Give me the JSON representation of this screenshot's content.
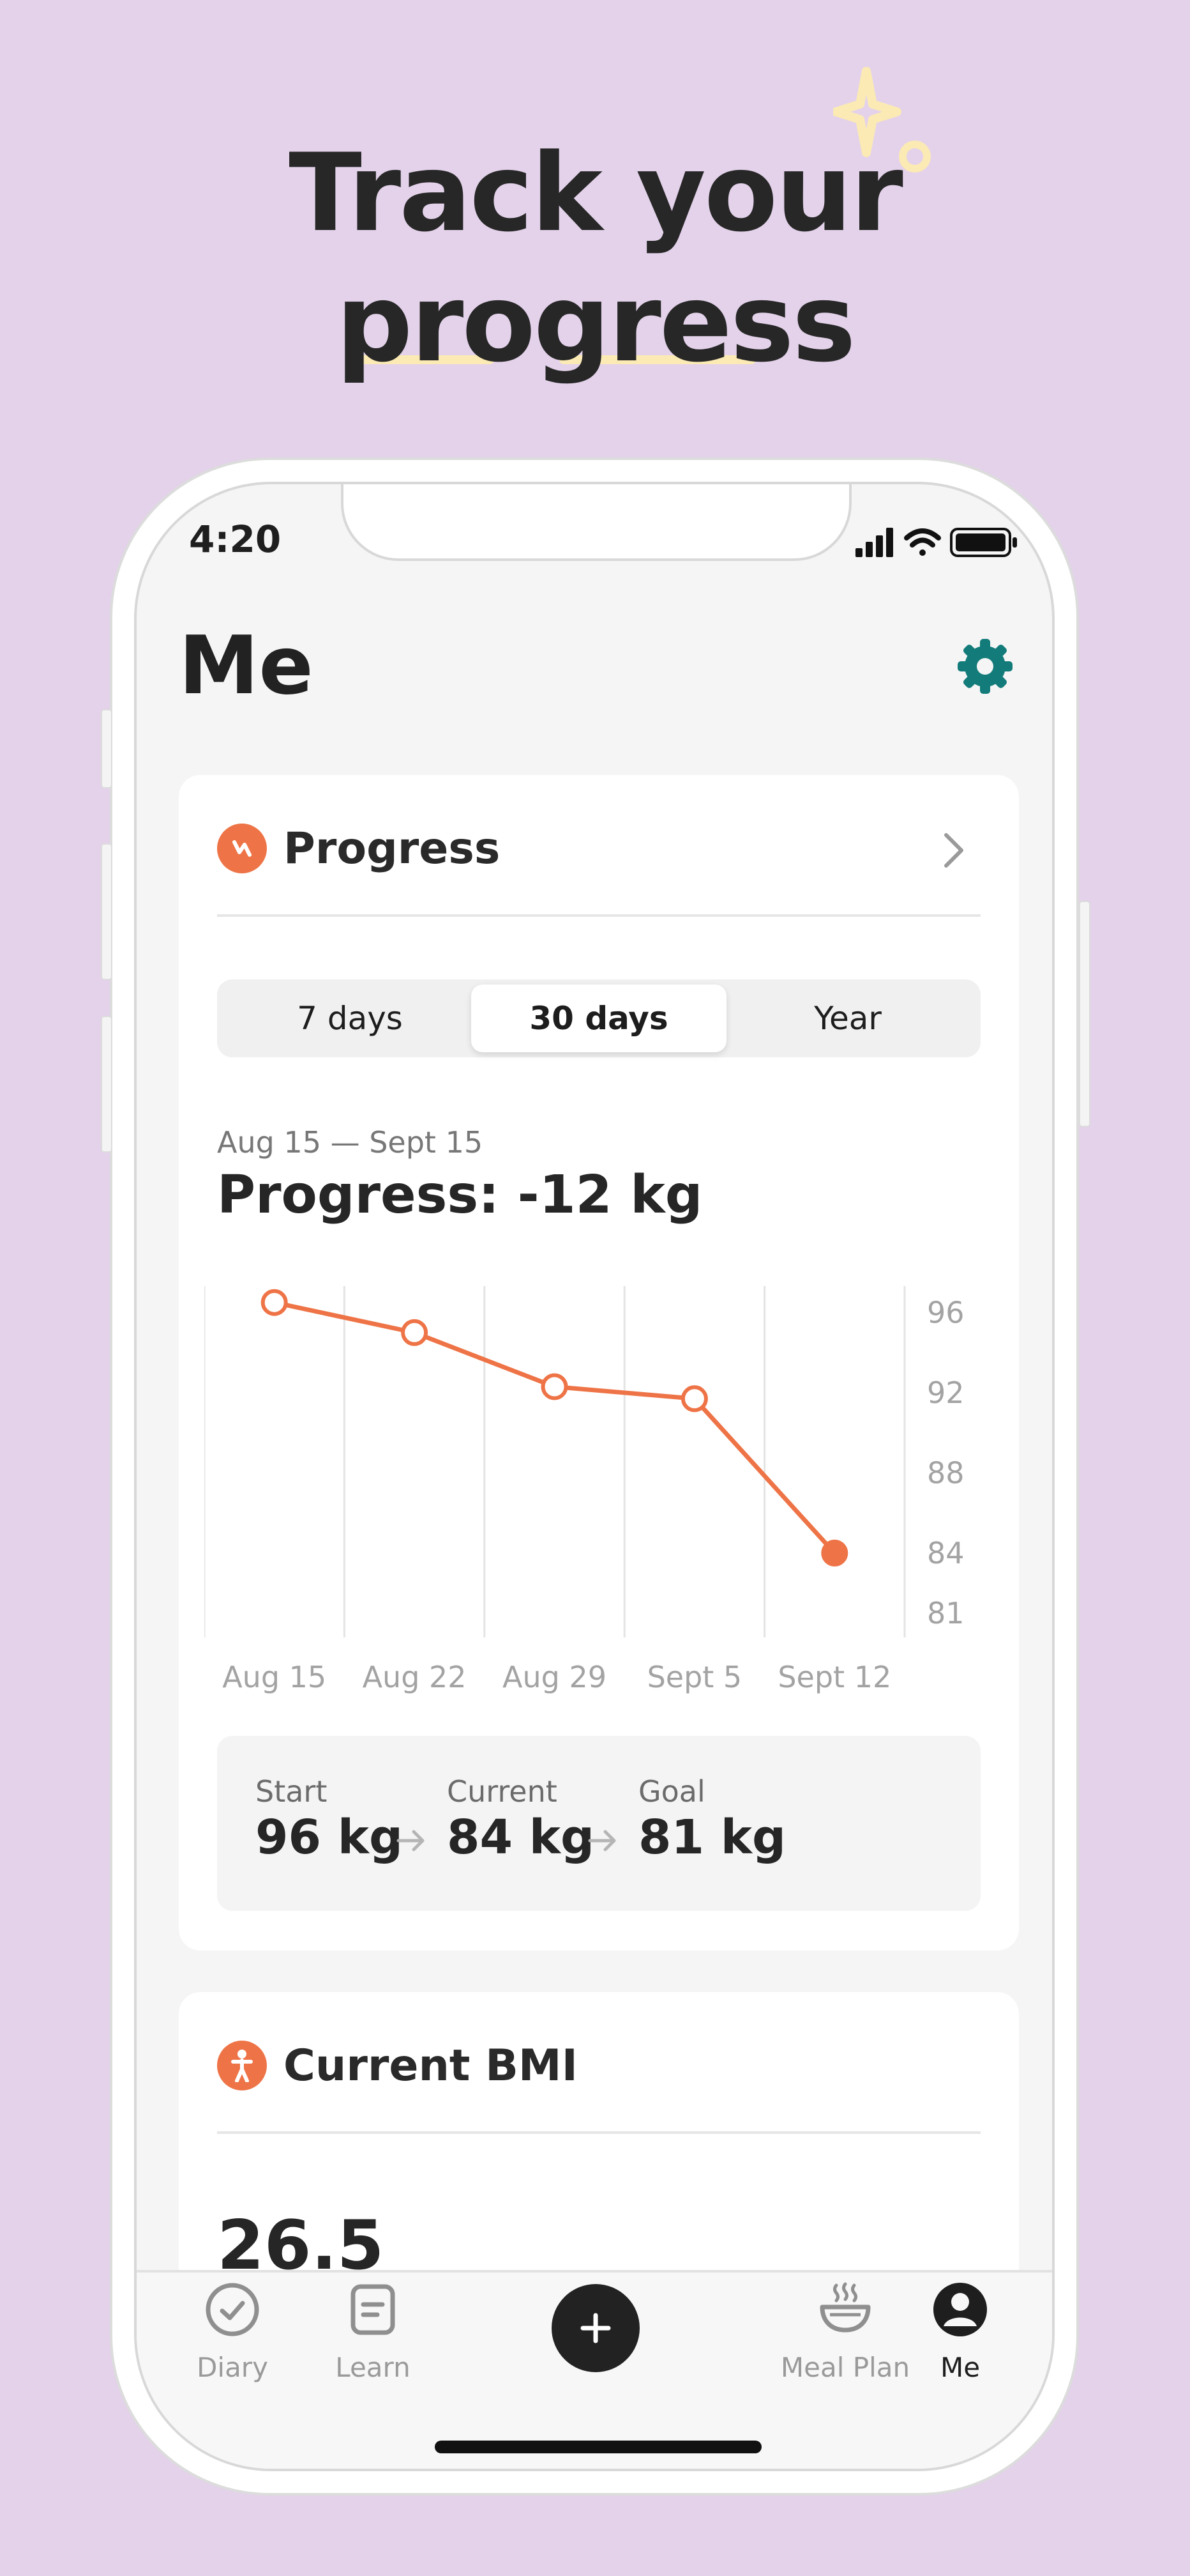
{
  "headline": {
    "line1": "Track your",
    "line2": "progress"
  },
  "status_bar": {
    "time": "4:20"
  },
  "page": {
    "title": "Me"
  },
  "progress_card": {
    "title": "Progress",
    "segments": [
      "7 days",
      "30 days",
      "Year"
    ],
    "selected_segment": "30 days",
    "date_range": "Aug 15 — Sept 15",
    "summary": "Progress: -12 kg",
    "stats": [
      {
        "label": "Start",
        "value": "96 kg"
      },
      {
        "label": "Current",
        "value": "84 kg"
      },
      {
        "label": "Goal",
        "value": "81 kg"
      }
    ]
  },
  "chart_data": {
    "type": "line",
    "categories": [
      "Aug 15",
      "Aug 22",
      "Aug 29",
      "Sept 5",
      "Sept 12"
    ],
    "yticks": [
      96,
      92,
      88,
      84,
      81
    ],
    "points": [
      {
        "x": "Aug 15",
        "y": 96.5
      },
      {
        "x": "Aug 22",
        "y": 95.0
      },
      {
        "x": "Aug 29",
        "y": 92.3
      },
      {
        "x": "Sept 5",
        "y": 91.7
      },
      {
        "x": "Sept 12",
        "y": 84.0
      }
    ],
    "ylim": [
      81,
      97
    ],
    "y_axis_position": "right",
    "grid": "vertical",
    "line_color": "#ee7447"
  },
  "bmi_card": {
    "title": "Current BMI",
    "value": "26.5"
  },
  "tab_bar": {
    "items": [
      {
        "label": "Diary",
        "icon": "diary-check-icon"
      },
      {
        "label": "Learn",
        "icon": "learn-book-icon"
      },
      {
        "label": "",
        "icon": "plus-icon"
      },
      {
        "label": "Meal Plan",
        "icon": "meal-bowl-icon"
      },
      {
        "label": "Me",
        "icon": "profile-icon"
      }
    ],
    "active": "Me"
  },
  "colors": {
    "accent": "#ee7447",
    "background": "#e3d2ea",
    "gear": "#137c7a",
    "highlight": "#fbeab4"
  }
}
